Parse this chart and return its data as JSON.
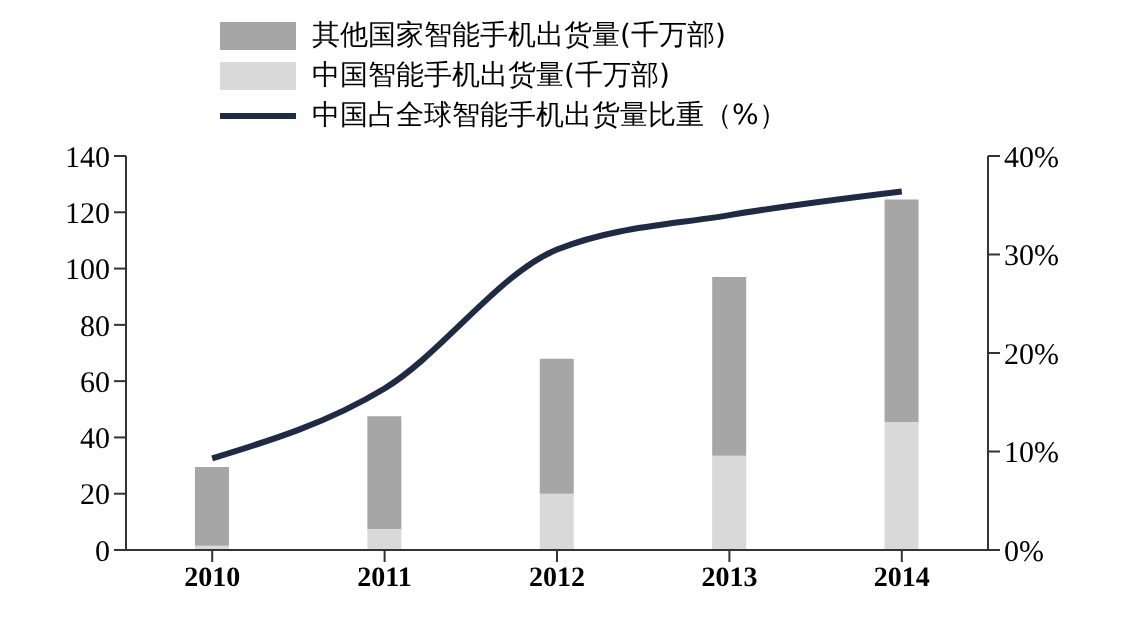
{
  "chart_data": {
    "type": "bar",
    "stacked": true,
    "categories": [
      "2010",
      "2011",
      "2012",
      "2013",
      "2014"
    ],
    "series": [
      {
        "name": "中国智能手机出货量(千万部)",
        "color": "#d9d9d9",
        "values": [
          1.5,
          7.5,
          20,
          33.5,
          45.5
        ]
      },
      {
        "name": "其他国家智能手机出货量(千万部)",
        "color": "#a6a6a6",
        "values": [
          28,
          40,
          48,
          63.5,
          79
        ]
      },
      {
        "name": "中国占全球智能手机出货量比重（%）",
        "type": "line",
        "axis": "y2",
        "color": "#1f2a44",
        "values": [
          9.3,
          16.4,
          30.5,
          34,
          36.4
        ]
      }
    ],
    "ylim": [
      0,
      140
    ],
    "yticks": [
      0,
      20,
      40,
      60,
      80,
      100,
      120,
      140
    ],
    "y2lim": [
      0,
      40
    ],
    "y2ticks": [
      {
        "value": 0,
        "label": "0%"
      },
      {
        "value": 10,
        "label": "10%"
      },
      {
        "value": 20,
        "label": "20%"
      },
      {
        "value": 30,
        "label": "30%"
      },
      {
        "value": 40,
        "label": "40%"
      }
    ],
    "grid": false,
    "legend": "top",
    "marker": "none",
    "line_style": "solid"
  }
}
